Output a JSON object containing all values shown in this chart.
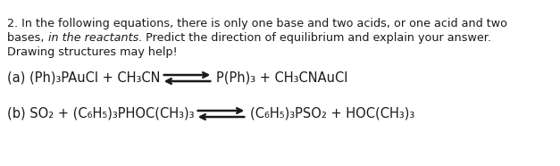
{
  "background_color": "#ffffff",
  "text_color": "#1a1a1a",
  "figsize": [
    6.27,
    1.86
  ],
  "dpi": 100,
  "line1": "2. In the following equations, there is only one base and two acids, or one acid and two",
  "line2_a": "bases, ",
  "line2_b": "in the reactants",
  "line2_c": ". Predict the direction of equilibrium and explain your answer.",
  "line3": "Drawing structures may help!",
  "eq_a_left": "(a) (Ph)₃PAuCl + CH₃CN",
  "eq_a_right": "P(Ph)₃ + CH₃CNAuCl",
  "eq_b_left": "(b) SO₂ + (C₆H₅)₃PHOC(CH₃)₃",
  "eq_b_right": "(C₆H₅)₃PSO₂ + HOC(CH₃)₃",
  "font_size_body": 9.2,
  "font_size_eq": 10.5
}
